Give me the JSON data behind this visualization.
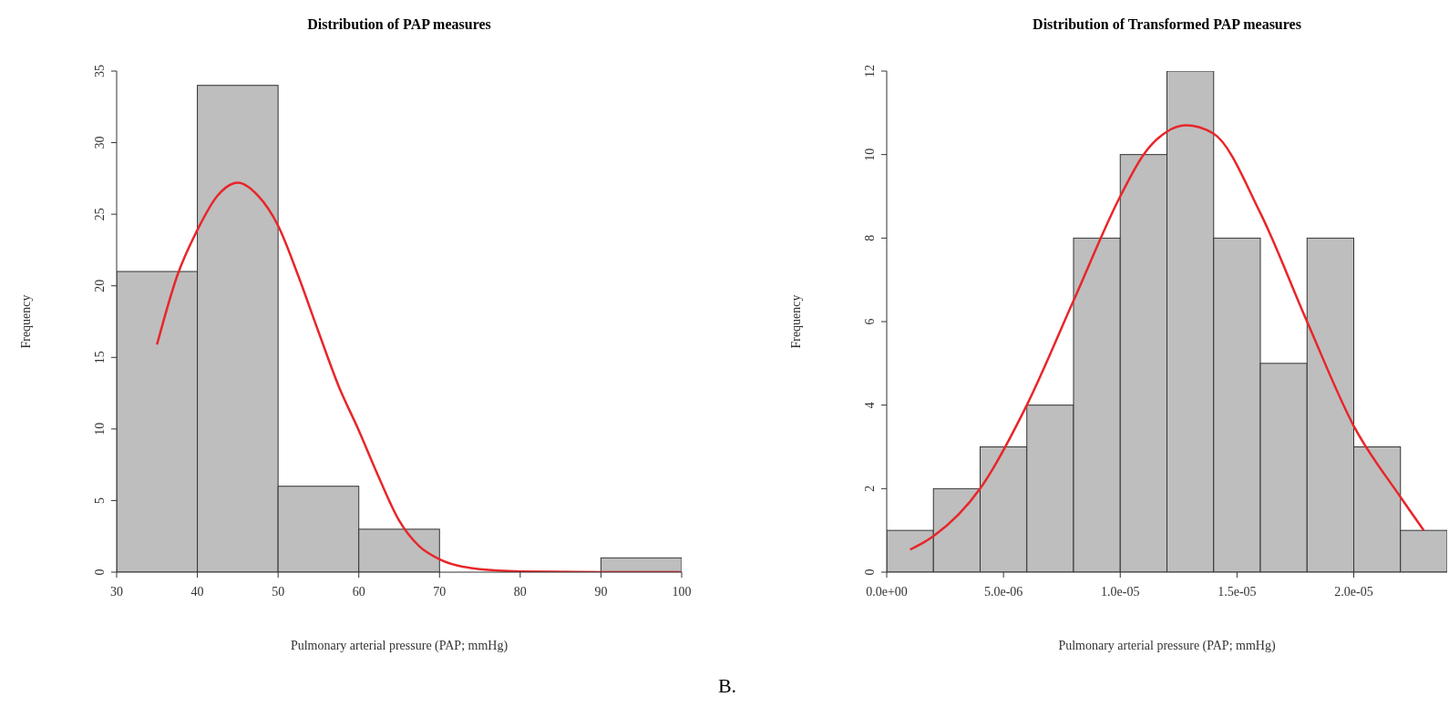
{
  "chart_data": [
    {
      "type": "histogram",
      "title": "Distribution of PAP measures",
      "xlabel": "Pulmonary arterial pressure (PAP; mmHg)",
      "ylabel": "Frequency",
      "bins": [
        30,
        40,
        50,
        60,
        70,
        80,
        90,
        100
      ],
      "values": [
        21,
        34,
        6,
        3,
        0,
        0,
        1
      ],
      "color": "#bebebe",
      "xlim": [
        30,
        100
      ],
      "xticks": [
        30,
        40,
        50,
        60,
        70,
        80,
        90,
        100
      ],
      "ylim": [
        0,
        35
      ],
      "yticks": [
        0,
        5,
        10,
        15,
        20,
        25,
        30,
        35
      ],
      "annotations": [
        "B."
      ],
      "series": [
        {
          "type": "line",
          "color": "#e8262a",
          "x": [
            35,
            37.5,
            40,
            42.5,
            45,
            47.5,
            50,
            52.5,
            55,
            57.5,
            60,
            62.5,
            65,
            67.5,
            70,
            75,
            80,
            90,
            100
          ],
          "values": [
            15.9,
            20.7,
            23.9,
            26.3,
            27.2,
            26.3,
            24.2,
            20.7,
            16.8,
            13,
            9.9,
            6.6,
            3.6,
            1.8,
            0.9,
            0.2,
            0.05,
            0,
            0
          ]
        }
      ]
    },
    {
      "type": "histogram",
      "title": "Distribution of Transformed PAP measures",
      "xlabel": "Pulmonary arterial pressure (PAP; mmHg)",
      "ylabel": "Frequency",
      "bins": [
        0,
        2e-06,
        4e-06,
        6e-06,
        8e-06,
        1e-05,
        1.2e-05,
        1.4e-05,
        1.6e-05,
        1.8e-05,
        2e-05,
        2.2e-05,
        2.4e-05
      ],
      "values": [
        1,
        2,
        3,
        4,
        8,
        10,
        12,
        8,
        5,
        8,
        3,
        1
      ],
      "color": "#bebebe",
      "xlim": [
        0,
        2.4e-05
      ],
      "xticks": [
        {
          "value": 0,
          "label": "0.0e+00"
        },
        {
          "value": 5e-06,
          "label": "5.0e-06"
        },
        {
          "value": 1e-05,
          "label": "1.0e-05"
        },
        {
          "value": 1.5e-05,
          "label": "1.5e-05"
        },
        {
          "value": 2e-05,
          "label": "2.0e-05"
        }
      ],
      "ylim": [
        0,
        12
      ],
      "yticks": [
        0,
        2,
        4,
        6,
        8,
        10,
        12
      ],
      "series": [
        {
          "type": "line",
          "color": "#e8262a",
          "x": [
            1e-06,
            2e-06,
            4e-06,
            6e-06,
            8e-06,
            1e-05,
            1.1e-05,
            1.2e-05,
            1.28e-05,
            1.4e-05,
            1.6e-05,
            1.8e-05,
            2e-05,
            2.2e-05,
            2.3e-05
          ],
          "values": [
            0.54,
            0.86,
            2.0,
            4.0,
            6.5,
            9.0,
            10.0,
            10.55,
            10.7,
            10.5,
            8.6,
            6.0,
            3.5,
            1.8,
            1.0
          ]
        }
      ]
    }
  ]
}
